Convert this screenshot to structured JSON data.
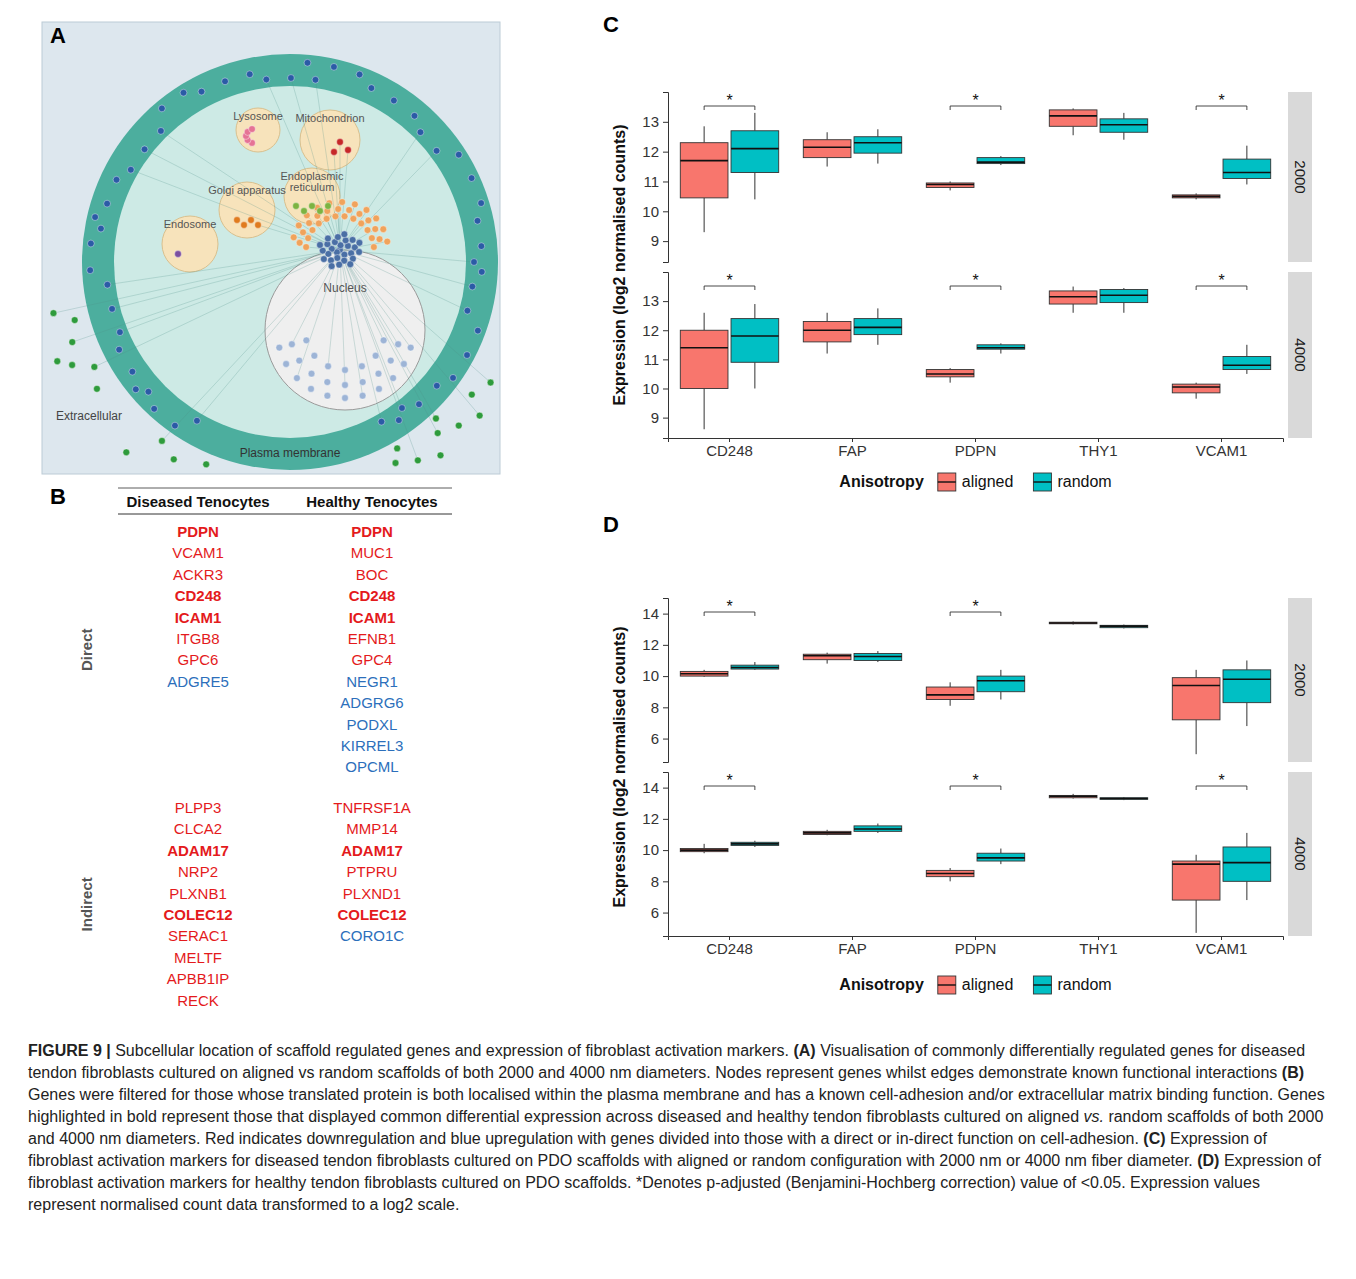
{
  "panel_a": {
    "letter": "A",
    "compartments": [
      {
        "label": "Mitochondrion",
        "color": "#c62828"
      },
      {
        "label": "Lysosome",
        "color": "#e57395"
      },
      {
        "label": "Endoplasmic reticulum",
        "color": "#7cb342"
      },
      {
        "label": "Golgi apparatus",
        "color": "#e07b1f"
      },
      {
        "label": "Endosome",
        "color": "#7b4fa0"
      },
      {
        "label": "Nucleus",
        "color": "#9db4d6"
      },
      {
        "label": "Plasma membrane",
        "color": "#2b5ba6"
      },
      {
        "label": "Extracellular",
        "color": "#2e9b3c"
      }
    ]
  },
  "panel_b": {
    "letter": "B",
    "columns": [
      "Diseased Tenocytes",
      "Healthy Tenocytes"
    ],
    "groups": [
      {
        "label": "Direct",
        "genes": [
          [
            {
              "name": "PDPN",
              "color": "#e41a1c",
              "bold": true
            },
            {
              "name": "VCAM1",
              "color": "#e41a1c"
            },
            {
              "name": "ACKR3",
              "color": "#e41a1c"
            },
            {
              "name": "CD248",
              "color": "#e41a1c",
              "bold": true
            },
            {
              "name": "ICAM1",
              "color": "#e41a1c",
              "bold": true
            },
            {
              "name": "ITGB8",
              "color": "#e41a1c"
            },
            {
              "name": "GPC6",
              "color": "#e41a1c"
            },
            {
              "name": "ADGRE5",
              "color": "#2c6fbb"
            }
          ],
          [
            {
              "name": "PDPN",
              "color": "#e41a1c",
              "bold": true
            },
            {
              "name": "MUC1",
              "color": "#e41a1c"
            },
            {
              "name": "BOC",
              "color": "#e41a1c"
            },
            {
              "name": "CD248",
              "color": "#e41a1c",
              "bold": true
            },
            {
              "name": "ICAM1",
              "color": "#e41a1c",
              "bold": true
            },
            {
              "name": "EFNB1",
              "color": "#e41a1c"
            },
            {
              "name": "GPC4",
              "color": "#e41a1c"
            },
            {
              "name": "NEGR1",
              "color": "#2c6fbb"
            },
            {
              "name": "ADGRG6",
              "color": "#2c6fbb"
            },
            {
              "name": "PODXL",
              "color": "#2c6fbb"
            },
            {
              "name": "KIRREL3",
              "color": "#2c6fbb"
            },
            {
              "name": "OPCML",
              "color": "#2c6fbb"
            }
          ]
        ]
      },
      {
        "label": "Indirect",
        "genes": [
          [
            {
              "name": "PLPP3",
              "color": "#e41a1c"
            },
            {
              "name": "CLCA2",
              "color": "#e41a1c"
            },
            {
              "name": "ADAM17",
              "color": "#e41a1c",
              "bold": true
            },
            {
              "name": "NRP2",
              "color": "#e41a1c"
            },
            {
              "name": "PLXNB1",
              "color": "#e41a1c"
            },
            {
              "name": "COLEC12",
              "color": "#e41a1c",
              "bold": true
            },
            {
              "name": "SERAC1",
              "color": "#e41a1c"
            },
            {
              "name": "MELTF",
              "color": "#e41a1c"
            },
            {
              "name": "APBB1IP",
              "color": "#e41a1c"
            },
            {
              "name": "RECK",
              "color": "#e41a1c"
            }
          ],
          [
            {
              "name": "TNFRSF1A",
              "color": "#e41a1c"
            },
            {
              "name": "MMP14",
              "color": "#e41a1c"
            },
            {
              "name": "ADAM17",
              "color": "#e41a1c",
              "bold": true
            },
            {
              "name": "PTPRU",
              "color": "#e41a1c"
            },
            {
              "name": "PLXND1",
              "color": "#e41a1c"
            },
            {
              "name": "COLEC12",
              "color": "#e41a1c",
              "bold": true
            },
            {
              "name": "CORO1C",
              "color": "#2c6fbb"
            }
          ]
        ]
      }
    ]
  },
  "chart_data": [
    {
      "type": "box",
      "letter": "C",
      "y_label": "Expression (log2 normalised counts)",
      "legend_title": "Anisotropy",
      "legend": "bottom",
      "categories": [
        "CD248",
        "FAP",
        "PDPN",
        "THY1",
        "VCAM1"
      ],
      "ylim": [
        8.3,
        14
      ],
      "yticks": [
        9,
        10,
        11,
        12,
        13
      ],
      "facets": [
        {
          "label": "2000",
          "significance": [
            "*",
            null,
            "*",
            null,
            "*"
          ],
          "series": [
            {
              "name": "aligned",
              "color": "#F8766D",
              "min": [
                9.3,
                11.5,
                10.7,
                12.55,
                10.4
              ],
              "q1": [
                10.45,
                11.8,
                10.8,
                12.85,
                10.45
              ],
              "median": [
                11.7,
                12.15,
                10.9,
                13.2,
                10.5
              ],
              "q3": [
                12.3,
                12.4,
                10.95,
                13.4,
                10.55
              ],
              "max": [
                12.85,
                12.65,
                11.0,
                13.45,
                10.6
              ]
            },
            {
              "name": "random",
              "color": "#00BFC4",
              "min": [
                10.4,
                11.6,
                11.55,
                12.4,
                10.9
              ],
              "q1": [
                11.3,
                11.95,
                11.6,
                12.65,
                11.1
              ],
              "median": [
                12.1,
                12.3,
                11.65,
                12.9,
                11.3
              ],
              "q3": [
                12.7,
                12.5,
                11.8,
                13.1,
                11.75
              ],
              "max": [
                13.3,
                12.75,
                11.85,
                13.3,
                12.2
              ]
            }
          ]
        },
        {
          "label": "4000",
          "significance": [
            "*",
            null,
            "*",
            null,
            "*"
          ],
          "series": [
            {
              "name": "aligned",
              "color": "#F8766D",
              "min": [
                8.6,
                11.2,
                10.2,
                12.6,
                9.65
              ],
              "q1": [
                10.0,
                11.6,
                10.4,
                12.9,
                9.85
              ],
              "median": [
                11.4,
                12.0,
                10.5,
                13.15,
                10.05
              ],
              "q3": [
                12.0,
                12.3,
                10.65,
                13.35,
                10.15
              ],
              "max": [
                12.6,
                12.6,
                10.7,
                13.5,
                10.2
              ]
            },
            {
              "name": "random",
              "color": "#00BFC4",
              "min": [
                10.0,
                11.5,
                11.2,
                12.6,
                10.5
              ],
              "q1": [
                10.9,
                11.85,
                11.35,
                12.95,
                10.65
              ],
              "median": [
                11.8,
                12.1,
                11.4,
                13.2,
                10.8
              ],
              "q3": [
                12.4,
                12.4,
                11.5,
                13.4,
                11.1
              ],
              "max": [
                12.9,
                12.75,
                11.55,
                13.45,
                11.5
              ]
            }
          ]
        }
      ]
    },
    {
      "type": "box",
      "letter": "D",
      "y_label": "Expression (log2 normalised counts)",
      "legend_title": "Anisotropy",
      "legend": "bottom",
      "categories": [
        "CD248",
        "FAP",
        "PDPN",
        "THY1",
        "VCAM1"
      ],
      "ylim": [
        4.5,
        15
      ],
      "yticks": [
        6,
        8,
        10,
        12,
        14
      ],
      "facets": [
        {
          "label": "2000",
          "significance": [
            "*",
            null,
            "*",
            null,
            null
          ],
          "series": [
            {
              "name": "aligned",
              "color": "#F8766D",
              "min": [
                9.95,
                10.8,
                8.1,
                13.3,
                5.0
              ],
              "q1": [
                10.0,
                11.05,
                8.5,
                13.35,
                7.2
              ],
              "median": [
                10.15,
                11.3,
                8.8,
                13.4,
                9.4
              ],
              "q3": [
                10.3,
                11.4,
                9.3,
                13.45,
                9.9
              ],
              "max": [
                10.4,
                11.5,
                9.6,
                13.5,
                10.4
              ]
            },
            {
              "name": "random",
              "color": "#00BFC4",
              "min": [
                10.4,
                10.9,
                8.5,
                13.05,
                6.8
              ],
              "q1": [
                10.45,
                11.0,
                9.0,
                13.1,
                8.3
              ],
              "median": [
                10.55,
                11.25,
                9.7,
                13.2,
                9.8
              ],
              "q3": [
                10.7,
                11.45,
                10.0,
                13.25,
                10.4
              ],
              "max": [
                10.9,
                11.6,
                10.4,
                13.3,
                11.0
              ]
            }
          ]
        },
        {
          "label": "4000",
          "significance": [
            "*",
            null,
            "*",
            null,
            "*"
          ],
          "series": [
            {
              "name": "aligned",
              "color": "#F8766D",
              "min": [
                9.8,
                10.95,
                8.0,
                13.3,
                4.7
              ],
              "q1": [
                9.9,
                11.0,
                8.3,
                13.35,
                6.8
              ],
              "median": [
                10.0,
                11.1,
                8.5,
                13.45,
                9.1
              ],
              "q3": [
                10.1,
                11.2,
                8.7,
                13.5,
                9.3
              ],
              "max": [
                10.4,
                11.3,
                8.85,
                13.6,
                9.7
              ]
            },
            {
              "name": "random",
              "color": "#00BFC4",
              "min": [
                10.2,
                11.1,
                9.1,
                13.2,
                6.8
              ],
              "q1": [
                10.3,
                11.2,
                9.3,
                13.25,
                8.0
              ],
              "median": [
                10.4,
                11.35,
                9.5,
                13.3,
                9.2
              ],
              "q3": [
                10.5,
                11.55,
                9.8,
                13.35,
                10.2
              ],
              "max": [
                10.6,
                11.7,
                10.1,
                13.4,
                11.1
              ]
            }
          ]
        }
      ]
    }
  ],
  "caption": [
    {
      "text": "FIGURE 9 | ",
      "bold": true
    },
    {
      "text": "Subcellular location of scaffold regulated genes and expression of fibroblast activation markers. "
    },
    {
      "text": "(A)",
      "bold": true
    },
    {
      "text": " Visualisation of commonly differentially regulated genes for diseased tendon fibroblasts cultured on aligned vs random scaffolds of both 2000 and 4000 nm diameters. Nodes represent genes whilst edges demonstrate known functional interactions "
    },
    {
      "text": "(B)",
      "bold": true
    },
    {
      "text": " Genes were filtered for those whose translated protein is both localised within the plasma membrane and has a known cell-adhesion and/or extracellular matrix binding function. Genes highlighted in bold represent those that displayed common differential expression across diseased and healthy tendon fibroblasts cultured on aligned "
    },
    {
      "text": "vs.",
      "italic": true
    },
    {
      "text": " random scaffolds of both 2000 and 4000 nm diameters. Red indicates downregulation and blue upregulation with genes divided into those with a direct or in-direct function on cell-adhesion. "
    },
    {
      "text": "(C)",
      "bold": true
    },
    {
      "text": " Expression of fibroblast activation markers for diseased tendon fibroblasts cultured on PDO scaffolds with aligned or random configuration with 2000 nm or 4000 nm fiber diameter. "
    },
    {
      "text": "(D)",
      "bold": true
    },
    {
      "text": " Expression of fibroblast activation markers for healthy tendon fibroblasts cultured on PDO scaffolds. *Denotes p-adjusted (Benjamini-Hochberg correction) value of <0.05. Expression values represent normalised count data transformed to a log2 scale."
    }
  ]
}
